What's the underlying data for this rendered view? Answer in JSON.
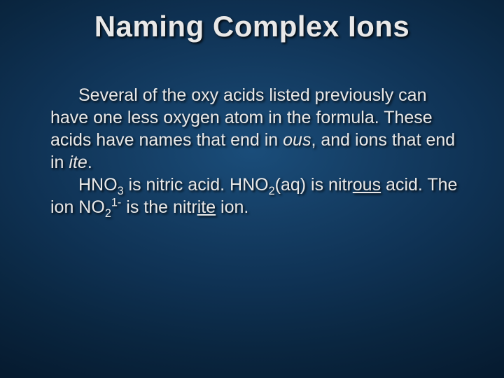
{
  "slide": {
    "background_color_center": "#1a4d7a",
    "background_color_edge": "#061b30",
    "text_color": "#e8e8e8",
    "text_shadow": "rgba(0,0,0,0.85)",
    "title_fontsize": 42,
    "body_fontsize": 25
  },
  "title": "Naming Complex Ions",
  "p1": {
    "t1": "Several of the oxy acids listed previously can have one less oxygen atom in the formula.  These acids have names that end in ",
    "ous": "ous",
    "t2": ", and ions that end in ",
    "ite": "ite",
    "t3": "."
  },
  "p2": {
    "t1": "HNO",
    "sub3": "3",
    "t2": " is nitric acid.  HNO",
    "sub2a": "2",
    "t3": "(aq) is nitr",
    "ous_u": "ous",
    "t4": " acid.  The ion NO",
    "sub2b": "2",
    "sup1m": "1-",
    "t5": " is the nitr",
    "ite_u": "ite",
    "t6": " ion."
  }
}
